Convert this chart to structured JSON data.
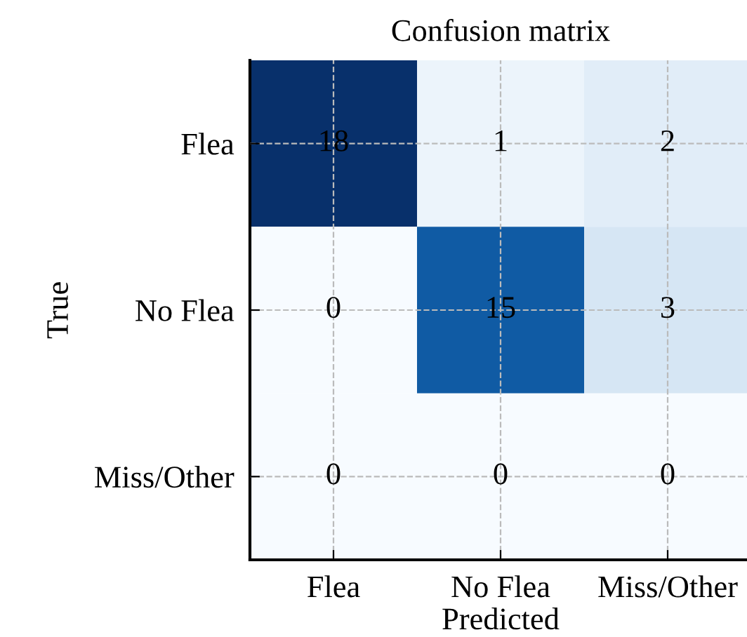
{
  "chart_data": {
    "type": "heatmap",
    "title": "Confusion matrix",
    "xlabel": "Predicted",
    "ylabel": "True",
    "categories": [
      "Flea",
      "No Flea",
      "Miss/Other"
    ],
    "y_categories": [
      "Flea",
      "No Flea",
      "Miss/Other"
    ],
    "cells": [
      [
        18,
        1,
        2
      ],
      [
        0,
        15,
        3
      ],
      [
        0,
        0,
        0
      ]
    ],
    "data_labels": true,
    "grid": true
  }
}
